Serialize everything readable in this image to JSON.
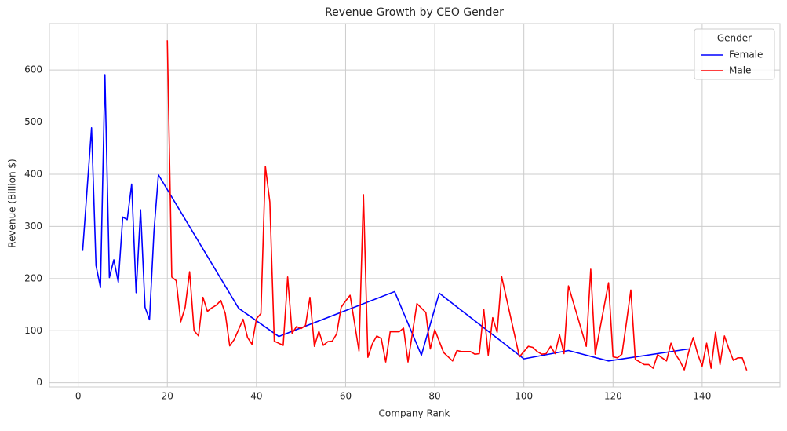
{
  "chart_data": {
    "type": "line",
    "title": "Revenue Growth by CEO Gender",
    "x_label": "Company Rank",
    "y_label": "Revenue (Billion $)",
    "legend_title": "Gender",
    "legend_position": "upper right",
    "grid": true,
    "xlim": [
      -6.45,
      157.45
    ],
    "ylim": [
      -8,
      689
    ],
    "xticks": [
      0,
      20,
      40,
      60,
      80,
      100,
      120,
      140
    ],
    "yticks": [
      0,
      100,
      200,
      300,
      400,
      500,
      600
    ],
    "series": [
      {
        "name": "Female",
        "color": "#0000ff",
        "x": [
          1,
          3,
          4,
          5,
          6,
          7,
          8,
          9,
          10,
          11,
          12,
          13,
          14,
          15,
          16,
          17,
          18,
          36,
          45,
          71,
          77,
          81,
          100,
          110,
          119,
          137
        ],
        "values": [
          253,
          489,
          225,
          183,
          591,
          202,
          236,
          193,
          318,
          313,
          381,
          173,
          332,
          145,
          121,
          290,
          399,
          143,
          89,
          175,
          53,
          172,
          46,
          62,
          42,
          65
        ]
      },
      {
        "name": "Male",
        "color": "#ff0000",
        "x": [
          20,
          21,
          22,
          23,
          24,
          25,
          26,
          27,
          28,
          29,
          30,
          31,
          32,
          33,
          34,
          35,
          37,
          38,
          39,
          40,
          41,
          42,
          43,
          44,
          46,
          47,
          48,
          49,
          50,
          51,
          52,
          53,
          54,
          55,
          56,
          57,
          58,
          59,
          60,
          61,
          62,
          63,
          64,
          65,
          66,
          67,
          68,
          69,
          70,
          72,
          73,
          74,
          75,
          76,
          78,
          79,
          80,
          82,
          83,
          84,
          85,
          86,
          87,
          88,
          89,
          90,
          91,
          92,
          93,
          94,
          95,
          99,
          101,
          102,
          103,
          104,
          105,
          106,
          107,
          108,
          109,
          110,
          114,
          115,
          116,
          119,
          120,
          121,
          122,
          123,
          124,
          125,
          126,
          127,
          128,
          129,
          130,
          131,
          132,
          133,
          134,
          135,
          136,
          137,
          138,
          139,
          140,
          141,
          142,
          143,
          144,
          145,
          146,
          147,
          148,
          149,
          150
        ],
        "values": [
          657,
          203,
          196,
          117,
          145,
          213,
          100,
          90,
          164,
          137,
          144,
          149,
          158,
          133,
          71,
          83,
          122,
          87,
          74,
          123,
          133,
          415,
          347,
          80,
          72,
          203,
          95,
          108,
          104,
          110,
          164,
          70,
          99,
          72,
          79,
          80,
          94,
          145,
          157,
          168,
          115,
          61,
          361,
          49,
          75,
          90,
          85,
          40,
          98,
          98,
          105,
          40,
          96,
          152,
          135,
          65,
          102,
          58,
          50,
          42,
          62,
          60,
          60,
          60,
          55,
          56,
          141,
          53,
          125,
          97,
          204,
          50,
          70,
          68,
          60,
          55,
          56,
          70,
          56,
          92,
          56,
          186,
          70,
          218,
          55,
          192,
          50,
          48,
          55,
          115,
          178,
          45,
          40,
          35,
          35,
          28,
          54,
          48,
          42,
          76,
          55,
          42,
          25,
          60,
          87,
          55,
          32,
          76,
          28,
          97,
          35,
          90,
          65,
          43,
          48,
          48,
          24
        ]
      }
    ]
  }
}
